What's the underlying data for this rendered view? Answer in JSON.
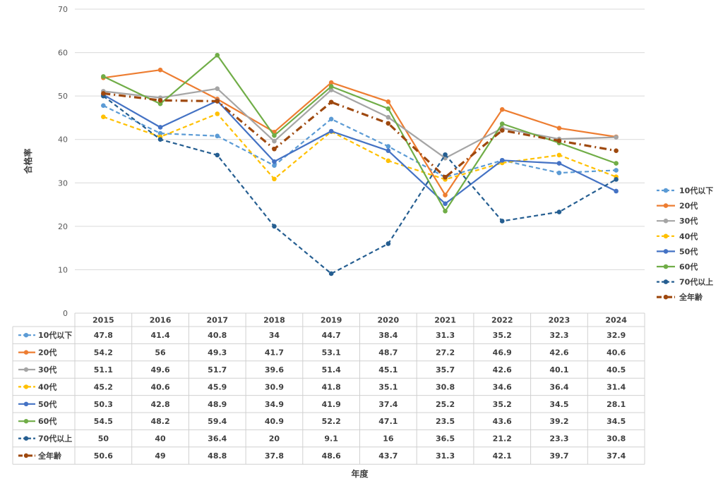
{
  "chart_data": {
    "type": "line",
    "title": "",
    "xlabel": "年度",
    "ylabel": "合格率",
    "ylim": [
      0,
      70
    ],
    "yticks": [
      0,
      10,
      20,
      30,
      40,
      50,
      60,
      70
    ],
    "grid": true,
    "legend": "right",
    "data_table": true,
    "categories": [
      "2015",
      "2016",
      "2017",
      "2018",
      "2019",
      "2020",
      "2021",
      "2022",
      "2023",
      "2024"
    ],
    "series": [
      {
        "name": "10代以下",
        "color": "#5B9BD5",
        "dash": "dashed",
        "values": [
          47.8,
          41.4,
          40.8,
          34,
          44.7,
          38.4,
          31.3,
          35.2,
          32.3,
          32.9
        ]
      },
      {
        "name": "20代",
        "color": "#ED7D31",
        "dash": "solid",
        "values": [
          54.2,
          56,
          49.3,
          41.7,
          53.1,
          48.7,
          27.2,
          46.9,
          42.6,
          40.6
        ]
      },
      {
        "name": "30代",
        "color": "#A5A5A5",
        "dash": "solid",
        "values": [
          51.1,
          49.6,
          51.7,
          39.6,
          51.4,
          45.1,
          35.7,
          42.6,
          40.1,
          40.5
        ]
      },
      {
        "name": "40代",
        "color": "#FFC000",
        "dash": "dashed",
        "values": [
          45.2,
          40.6,
          45.9,
          30.9,
          41.8,
          35.1,
          30.8,
          34.6,
          36.4,
          31.4
        ]
      },
      {
        "name": "50代",
        "color": "#4472C4",
        "dash": "solid",
        "values": [
          50.3,
          42.8,
          48.9,
          34.9,
          41.9,
          37.4,
          25.2,
          35.2,
          34.5,
          28.1
        ]
      },
      {
        "name": "60代",
        "color": "#70AD47",
        "dash": "solid",
        "values": [
          54.5,
          48.2,
          59.4,
          40.9,
          52.2,
          47.1,
          23.5,
          43.6,
          39.2,
          34.5
        ]
      },
      {
        "name": "70代以上",
        "color": "#255E91",
        "dash": "dashed",
        "values": [
          50,
          40,
          36.4,
          20,
          9.1,
          16,
          36.5,
          21.2,
          23.3,
          30.8
        ]
      },
      {
        "name": "全年齢",
        "color": "#9E480E",
        "dash": "dashdot",
        "values": [
          50.6,
          49,
          48.8,
          37.8,
          48.6,
          43.7,
          31.3,
          42.1,
          39.7,
          37.4
        ]
      }
    ]
  }
}
